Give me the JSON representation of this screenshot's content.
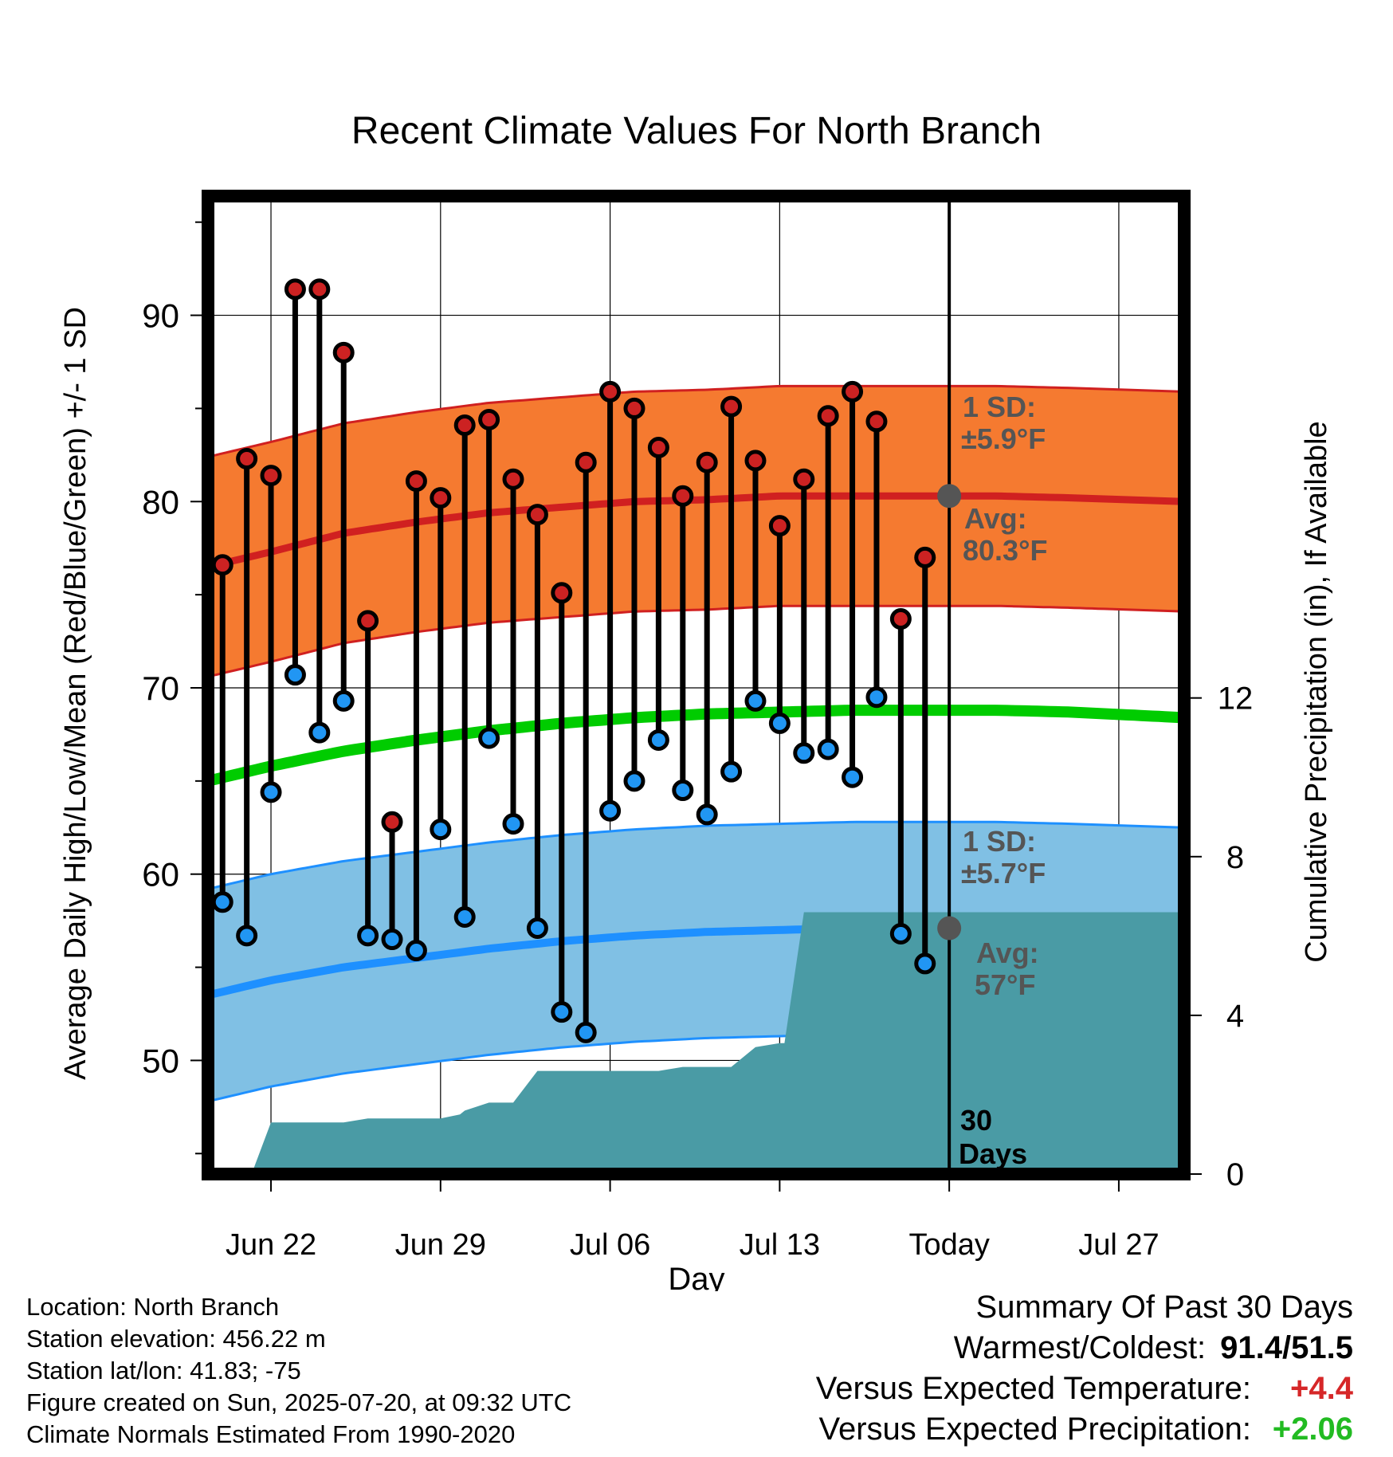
{
  "chart_data": {
    "type": "line",
    "title": "Recent Climate Values For North Branch",
    "xlabel": "Day",
    "ylabel_left": "Average Daily High/Low/Mean (Red/Blue/Green) +/- 1 SD",
    "ylabel_right": "Cumulative Precipitation (in), If Available",
    "x_ticks": [
      {
        "day": 3,
        "label": "Jun 22"
      },
      {
        "day": 10,
        "label": "Jun 29"
      },
      {
        "day": 17,
        "label": "Jul 06"
      },
      {
        "day": 24,
        "label": "Jul 13"
      },
      {
        "day": 31,
        "label": "Today"
      },
      {
        "day": 38,
        "label": "Jul 27"
      }
    ],
    "x_range": [
      0.4,
      40.7
    ],
    "y_left_ticks": [
      50,
      60,
      70,
      80,
      90
    ],
    "y_left_range": [
      43.9,
      96.4
    ],
    "y_right_ticks": [
      0,
      4,
      8,
      12
    ],
    "y_right_range": [
      0,
      24.65
    ],
    "grid": true,
    "today_day": 31,
    "days": [
      1,
      2,
      3,
      4,
      5,
      6,
      7,
      8,
      9,
      10,
      11,
      12,
      13,
      14,
      15,
      16,
      17,
      18,
      19,
      20,
      21,
      22,
      23,
      24,
      25,
      26,
      27,
      28,
      29,
      30
    ],
    "daily_high": [
      76.6,
      82.3,
      81.4,
      91.4,
      91.4,
      88.0,
      73.6,
      62.8,
      81.1,
      80.2,
      84.1,
      84.4,
      81.2,
      79.3,
      75.1,
      82.1,
      85.9,
      85.0,
      82.9,
      80.3,
      82.1,
      85.1,
      82.2,
      78.7,
      81.2,
      84.6,
      85.9,
      84.3,
      73.7,
      77.0
    ],
    "daily_low": [
      58.5,
      56.7,
      64.4,
      70.7,
      67.6,
      69.3,
      56.7,
      56.5,
      55.9,
      62.4,
      57.7,
      67.3,
      62.7,
      57.1,
      52.6,
      51.5,
      63.4,
      65.0,
      67.2,
      64.5,
      63.2,
      65.5,
      69.3,
      68.1,
      66.5,
      66.7,
      65.2,
      69.5,
      56.8,
      55.2
    ],
    "normals": {
      "days": [
        0.4,
        3,
        6,
        9,
        12,
        15,
        18,
        21,
        24,
        27,
        30,
        33,
        36,
        40.7
      ],
      "avg_high": [
        76.5,
        77.3,
        78.3,
        78.9,
        79.4,
        79.7,
        80.0,
        80.1,
        80.3,
        80.3,
        80.3,
        80.3,
        80.2,
        80.0
      ],
      "avg_low": [
        53.5,
        54.3,
        55.0,
        55.5,
        56.0,
        56.4,
        56.7,
        56.9,
        57.0,
        57.1,
        57.1,
        57.1,
        57.0,
        56.8
      ],
      "avg_mean": [
        65.0,
        65.8,
        66.6,
        67.2,
        67.7,
        68.1,
        68.4,
        68.6,
        68.7,
        68.8,
        68.8,
        68.8,
        68.7,
        68.4
      ],
      "sd_high": 5.9,
      "sd_low": 5.7
    },
    "cumulative_precip": {
      "days": [
        2.2,
        3,
        6,
        7,
        8,
        10,
        10.8,
        11,
        12,
        13,
        14,
        15,
        16,
        17,
        18,
        19,
        20,
        21,
        22,
        23,
        24,
        24.2,
        25,
        41
      ],
      "values": [
        0,
        1.3,
        1.3,
        1.4,
        1.4,
        1.4,
        1.5,
        1.6,
        1.8,
        1.8,
        2.6,
        2.6,
        2.6,
        2.6,
        2.6,
        2.6,
        2.7,
        2.7,
        2.7,
        3.2,
        3.3,
        3.3,
        6.6,
        6.6
      ]
    },
    "annotations": {
      "high_sd_label": "1 SD:",
      "high_sd_value": "±5.9°F",
      "high_avg_label": "Avg:",
      "high_avg_value": "80.3°F",
      "low_sd_label": "1 SD:",
      "low_sd_value": "±5.7°F",
      "low_avg_label": "Avg:",
      "low_avg_value": "57°F",
      "window_label_1": "30",
      "window_label_2": "Days"
    },
    "colors": {
      "high_band": "#f57a30",
      "high_line": "#d02020",
      "low_band": "#80c0e4",
      "low_line": "#1e90ff",
      "mean_line": "#00cc00",
      "precip_fill": "#4a9ba5",
      "high_marker": "#cc2222",
      "low_marker": "#2196f3",
      "annotation_text": "#555555"
    }
  },
  "footer": {
    "location": "Location: North Branch",
    "elevation": "Station elevation: 456.22 m",
    "latlon": "Station lat/lon: 41.83; -75",
    "created": "Figure created on Sun, 2025-07-20, at 09:32 UTC",
    "normals": "Climate Normals Estimated From 1990-2020"
  },
  "summary": {
    "title": "Summary Of Past 30 Days",
    "warm_cold_label": "Warmest/Coldest:",
    "warm_cold_value": "91.4/51.5",
    "temp_label": "Versus Expected Temperature:",
    "temp_value": "+4.4",
    "precip_label": "Versus Expected Precipitation:",
    "precip_value": "+2.06"
  }
}
